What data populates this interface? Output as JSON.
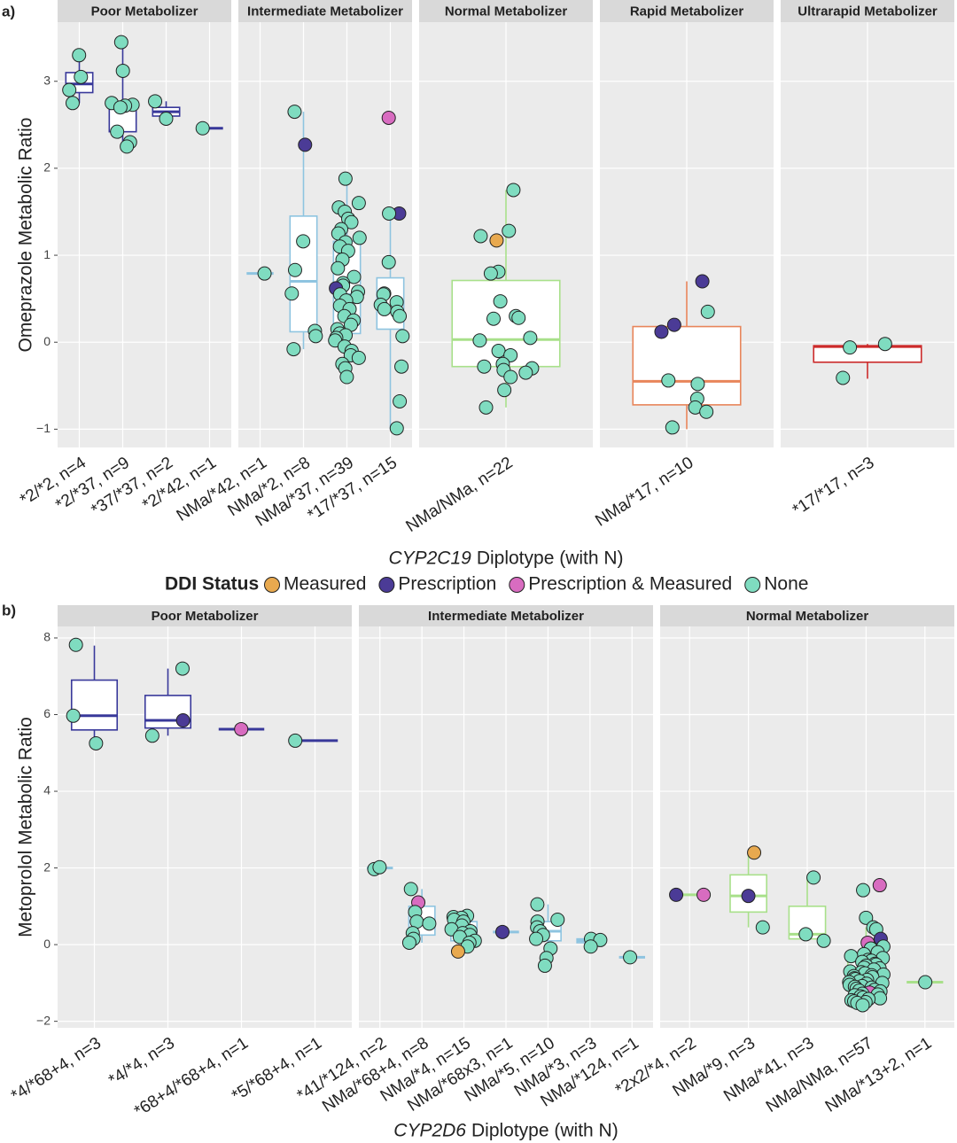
{
  "chart_data": [
    {
      "type": "box",
      "panel": "a)",
      "y_label": "Omeprazole Metabolic Ratio",
      "x_label_gene": "CYP2C19",
      "x_label_rest": "Diplotype (with N)",
      "ylim": [
        -1.21,
        3.68
      ],
      "yticks": [
        {
          "value": -1,
          "label": "−1"
        },
        0,
        1,
        2,
        3
      ],
      "grid": true,
      "facets": [
        {
          "name": "Poor Metabolizer",
          "color": "#38389a",
          "groups": [
            {
              "label": "*2/*2, n=4",
              "q1": 2.87,
              "median": 2.97,
              "q3": 3.1,
              "whisker_low": 2.75,
              "whisker_high": 3.3,
              "points": [
                3.3,
                3.05,
                2.9,
                2.75
              ],
              "ddi": [
                3,
                3,
                3,
                3
              ]
            },
            {
              "label": "*2/*37, n=9",
              "q1": 2.42,
              "median": 2.73,
              "q3": 2.75,
              "whisker_low": 2.25,
              "whisker_high": 3.45,
              "points": [
                3.45,
                3.12,
                2.75,
                2.73,
                2.72,
                2.7,
                2.42,
                2.3,
                2.25
              ],
              "ddi": [
                3,
                3,
                3,
                3,
                3,
                3,
                3,
                3,
                3
              ]
            },
            {
              "label": "*37/*37, n=2",
              "q1": 2.6,
              "median": 2.65,
              "q3": 2.7,
              "whisker_low": 2.57,
              "whisker_high": 2.77,
              "points": [
                2.77,
                2.57
              ],
              "ddi": [
                3,
                3
              ]
            },
            {
              "label": "*2/*42, n=1",
              "median": 2.46,
              "points": [
                2.46
              ],
              "ddi": [
                3
              ]
            }
          ]
        },
        {
          "name": "Intermediate Metabolizer",
          "color": "#8ec4e0",
          "groups": [
            {
              "label": "NMa/*42, n=1",
              "median": 0.79,
              "points": [
                0.79
              ],
              "ddi": [
                3
              ]
            },
            {
              "label": "NMa/*2, n=8",
              "q1": 0.12,
              "median": 0.7,
              "q3": 1.45,
              "whisker_low": -0.08,
              "whisker_high": 2.65,
              "points": [
                2.65,
                2.27,
                1.16,
                0.83,
                0.56,
                0.13,
                0.07,
                -0.08
              ],
              "ddi": [
                3,
                1,
                3,
                3,
                3,
                3,
                3,
                3
              ]
            },
            {
              "label": "NMa/*37, n=39",
              "q1": 0.1,
              "median": 0.55,
              "q3": 1.16,
              "whisker_low": -0.4,
              "whisker_high": 1.88,
              "points": [
                1.88,
                1.6,
                1.55,
                1.5,
                1.42,
                1.38,
                1.3,
                1.25,
                1.2,
                1.15,
                1.1,
                1.05,
                0.95,
                0.85,
                0.75,
                0.68,
                0.65,
                0.62,
                0.58,
                0.55,
                0.52,
                0.48,
                0.42,
                0.38,
                0.3,
                0.25,
                0.2,
                0.15,
                0.1,
                0.08,
                0.05,
                0.02,
                -0.05,
                -0.1,
                -0.15,
                -0.18,
                -0.25,
                -0.3,
                -0.4
              ],
              "ddi": [
                3,
                3,
                3,
                3,
                3,
                3,
                3,
                3,
                3,
                3,
                3,
                3,
                3,
                3,
                3,
                3,
                3,
                1,
                3,
                3,
                3,
                3,
                3,
                3,
                3,
                3,
                3,
                3,
                3,
                3,
                3,
                3,
                3,
                3,
                3,
                3,
                3,
                3,
                3
              ]
            },
            {
              "label": "*17/*37, n=15",
              "q1": 0.15,
              "median": 0.38,
              "q3": 0.74,
              "whisker_low": -1,
              "whisker_high": 1.5,
              "points": [
                2.58,
                1.48,
                1.48,
                0.92,
                0.56,
                0.55,
                0.46,
                0.43,
                0.38,
                0.35,
                0.3,
                0.07,
                -0.28,
                -0.68,
                -0.99
              ],
              "ddi": [
                2,
                1,
                3,
                3,
                3,
                3,
                3,
                3,
                3,
                3,
                3,
                3,
                3,
                3,
                3
              ]
            }
          ]
        },
        {
          "name": "Normal Metabolizer",
          "color": "#a8e08a",
          "groups": [
            {
              "label": "NMa/NMa, n=22",
              "q1": -0.28,
              "median": 0.03,
              "q3": 0.71,
              "whisker_low": -0.75,
              "whisker_high": 1.75,
              "points": [
                1.75,
                1.28,
                1.22,
                1.17,
                0.81,
                0.79,
                0.47,
                0.3,
                0.28,
                0.27,
                0.05,
                0.02,
                -0.1,
                -0.15,
                -0.25,
                -0.28,
                -0.3,
                -0.32,
                -0.35,
                -0.4,
                -0.55,
                -0.75
              ],
              "ddi": [
                3,
                3,
                3,
                0,
                3,
                3,
                3,
                3,
                3,
                3,
                3,
                3,
                3,
                3,
                3,
                3,
                3,
                3,
                3,
                3,
                3,
                3
              ]
            }
          ]
        },
        {
          "name": "Rapid Metabolizer",
          "color": "#e8855a",
          "groups": [
            {
              "label": "NMa/*17, n=10",
              "q1": -0.72,
              "median": -0.45,
              "q3": 0.18,
              "whisker_low": -1,
              "whisker_high": 0.7,
              "points": [
                0.7,
                0.35,
                0.2,
                0.12,
                -0.44,
                -0.48,
                -0.65,
                -0.75,
                -0.8,
                -0.98
              ],
              "ddi": [
                1,
                3,
                1,
                1,
                3,
                3,
                3,
                3,
                3,
                3
              ]
            }
          ]
        },
        {
          "name": "Ultrarapid Metabolizer",
          "color": "#cc2a2a",
          "groups": [
            {
              "label": "*17/*17, n=3",
              "q1": -0.23,
              "median": -0.05,
              "q3": -0.04,
              "whisker_low": -0.42,
              "whisker_high": -0.02,
              "points": [
                -0.02,
                -0.06,
                -0.41
              ],
              "ddi": [
                3,
                3,
                3
              ]
            }
          ]
        }
      ]
    },
    {
      "type": "box",
      "panel": "b)",
      "y_label": "Metoprolol Metabolic Ratio",
      "x_label_gene": "CYP2D6",
      "x_label_rest": "Diplotype (with N)",
      "ylim": [
        -2.17,
        8.3
      ],
      "yticks": [
        {
          "value": -2,
          "label": "−2"
        },
        0,
        2,
        4,
        6,
        8
      ],
      "grid": true,
      "facets": [
        {
          "name": "Poor Metabolizer",
          "color": "#38389a",
          "groups": [
            {
              "label": "*4/*68+4, n=3",
              "q1": 5.6,
              "median": 5.97,
              "q3": 6.9,
              "whisker_low": 5.25,
              "whisker_high": 7.8,
              "points": [
                7.82,
                5.97,
                5.25
              ],
              "ddi": [
                3,
                3,
                3
              ]
            },
            {
              "label": "*4/*4, n=3",
              "q1": 5.65,
              "median": 5.85,
              "q3": 6.5,
              "whisker_low": 5.45,
              "whisker_high": 7.2,
              "points": [
                7.2,
                5.85,
                5.45
              ],
              "ddi": [
                3,
                1,
                3
              ]
            },
            {
              "label": "*68+4/*68+4, n=1",
              "median": 5.62,
              "points": [
                5.62
              ],
              "ddi": [
                2
              ]
            },
            {
              "label": "*5/*68+4, n=1",
              "median": 5.32,
              "points": [
                5.32
              ],
              "ddi": [
                3
              ]
            }
          ]
        },
        {
          "name": "Intermediate Metabolizer",
          "color": "#8ec4e0",
          "groups": [
            {
              "label": "*41/*124, n=2",
              "median": 2.0,
              "points": [
                1.97,
                2.02
              ],
              "ddi": [
                3,
                3
              ]
            },
            {
              "label": "NMa/*68+4, n=8",
              "q1": 0.25,
              "median": 0.6,
              "q3": 1.0,
              "whisker_low": 0.05,
              "whisker_high": 1.45,
              "points": [
                1.45,
                1.1,
                0.85,
                0.6,
                0.55,
                0.3,
                0.15,
                0.05
              ],
              "ddi": [
                3,
                2,
                3,
                3,
                3,
                3,
                3,
                3
              ]
            },
            {
              "label": "NMa/*4, n=15",
              "q1": 0.1,
              "median": 0.3,
              "q3": 0.6,
              "whisker_low": -0.2,
              "whisker_high": 0.75,
              "points": [
                0.75,
                0.72,
                0.7,
                0.65,
                0.6,
                0.5,
                0.4,
                0.35,
                0.3,
                0.25,
                0.2,
                0.1,
                0.05,
                -0.05,
                -0.18
              ],
              "ddi": [
                3,
                3,
                3,
                3,
                3,
                3,
                3,
                3,
                3,
                3,
                3,
                3,
                3,
                3,
                0
              ]
            },
            {
              "label": "NMa/*68x3, n=1",
              "median": 0.33,
              "points": [
                0.33
              ],
              "ddi": [
                1
              ]
            },
            {
              "label": "NMa/*5, n=10",
              "q1": 0.1,
              "median": 0.35,
              "q3": 0.6,
              "whisker_low": -0.55,
              "whisker_high": 1.05,
              "points": [
                1.05,
                0.65,
                0.6,
                0.45,
                0.35,
                0.25,
                0.15,
                -0.1,
                -0.35,
                -0.55
              ],
              "ddi": [
                3,
                3,
                3,
                3,
                3,
                3,
                3,
                3,
                3,
                3
              ]
            },
            {
              "label": "NMa/*3, n=3",
              "q1": 0.05,
              "median": 0.1,
              "q3": 0.15,
              "whisker_low": -0.05,
              "whisker_high": 0.15,
              "points": [
                0.15,
                0.12,
                -0.05
              ],
              "ddi": [
                3,
                3,
                3
              ]
            },
            {
              "label": "NMa/*124, n=1",
              "median": -0.33,
              "points": [
                -0.33
              ],
              "ddi": [
                3
              ]
            }
          ]
        },
        {
          "name": "Normal Metabolizer",
          "color": "#a8e08a",
          "groups": [
            {
              "label": "*2x2/*4, n=2",
              "median": 1.3,
              "points": [
                1.3,
                1.3
              ],
              "ddi": [
                1,
                2
              ]
            },
            {
              "label": "NMa/*9, n=3",
              "q1": 0.85,
              "median": 1.27,
              "q3": 1.82,
              "whisker_low": 0.45,
              "whisker_high": 2.4,
              "points": [
                2.4,
                1.27,
                0.45
              ],
              "ddi": [
                0,
                1,
                3
              ]
            },
            {
              "label": "NMa/*41, n=3",
              "q1": 0.15,
              "median": 0.27,
              "q3": 1.0,
              "whisker_low": 0.1,
              "whisker_high": 1.75,
              "points": [
                1.75,
                0.27,
                0.1
              ],
              "ddi": [
                3,
                3,
                3
              ]
            },
            {
              "label": "NMa/NMa, n=57",
              "q1": -1.1,
              "median": -0.8,
              "q3": -0.4,
              "whisker_low": -1.58,
              "whisker_high": 0.45,
              "points": [
                1.55,
                1.42,
                0.7,
                0.45,
                0.4,
                0.15,
                0.05,
                -0.05,
                -0.1,
                -0.2,
                -0.25,
                -0.3,
                -0.35,
                -0.4,
                -0.42,
                -0.45,
                -0.5,
                -0.52,
                -0.55,
                -0.6,
                -0.62,
                -0.65,
                -0.7,
                -0.72,
                -0.75,
                -0.78,
                -0.8,
                -0.82,
                -0.85,
                -0.88,
                -0.9,
                -0.92,
                -0.95,
                -0.98,
                -1.0,
                -1.02,
                -1.05,
                -1.08,
                -1.1,
                -1.12,
                -1.15,
                -1.18,
                -1.2,
                -1.22,
                -1.25,
                -1.28,
                -1.3,
                -1.32,
                -1.35,
                -1.38,
                -1.4,
                -1.42,
                -1.45,
                -1.48,
                -1.5,
                -1.52,
                -1.58
              ],
              "ddi": [
                2,
                3,
                3,
                3,
                3,
                1,
                2,
                3,
                3,
                3,
                3,
                3,
                3,
                3,
                3,
                3,
                3,
                3,
                3,
                3,
                3,
                3,
                3,
                3,
                3,
                3,
                3,
                3,
                3,
                3,
                3,
                3,
                3,
                3,
                3,
                3,
                3,
                3,
                3,
                3,
                3,
                3,
                3,
                3,
                2,
                3,
                3,
                3,
                3,
                3,
                3,
                3,
                3,
                3,
                3,
                3,
                3
              ]
            },
            {
              "label": "NMa/*13+2, n=1",
              "median": -0.98,
              "points": [
                -0.98
              ],
              "ddi": [
                3
              ]
            }
          ]
        }
      ]
    }
  ],
  "legend": {
    "title": "DDI Status",
    "items": [
      {
        "name": "Measured",
        "color": "#e8a94f"
      },
      {
        "name": "Prescription",
        "color": "#4b3b96"
      },
      {
        "name": "Prescription & Measured",
        "color": "#d86cc0"
      },
      {
        "name": "None",
        "color": "#7fdcc0"
      }
    ]
  }
}
